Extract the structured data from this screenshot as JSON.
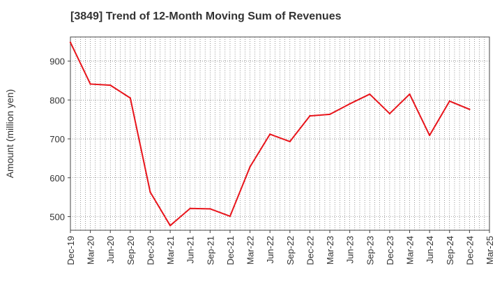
{
  "chart_data": {
    "type": "line",
    "title": "[3849]  Trend of 12-Month Moving Sum of Revenues",
    "xlabel": "",
    "ylabel": "Amount (million yen)",
    "ylim": [
      465,
      962
    ],
    "yticks": [
      500,
      600,
      700,
      800,
      900
    ],
    "grid": true,
    "categories": [
      "Dec-19",
      "Mar-20",
      "Jun-20",
      "Sep-20",
      "Dec-20",
      "Mar-21",
      "Jun-21",
      "Sep-21",
      "Dec-21",
      "Mar-22",
      "Jun-22",
      "Sep-22",
      "Dec-22",
      "Mar-23",
      "Jun-23",
      "Sep-23",
      "Dec-23",
      "Mar-24",
      "Jun-24",
      "Sep-24",
      "Dec-24",
      "Mar-25"
    ],
    "series": [
      {
        "color": "#e8141b",
        "values": [
          948,
          841,
          838,
          805,
          563,
          477,
          521,
          520,
          501,
          628,
          712,
          693,
          759,
          763,
          790,
          815,
          765,
          815,
          709,
          797,
          776,
          null
        ]
      }
    ]
  }
}
